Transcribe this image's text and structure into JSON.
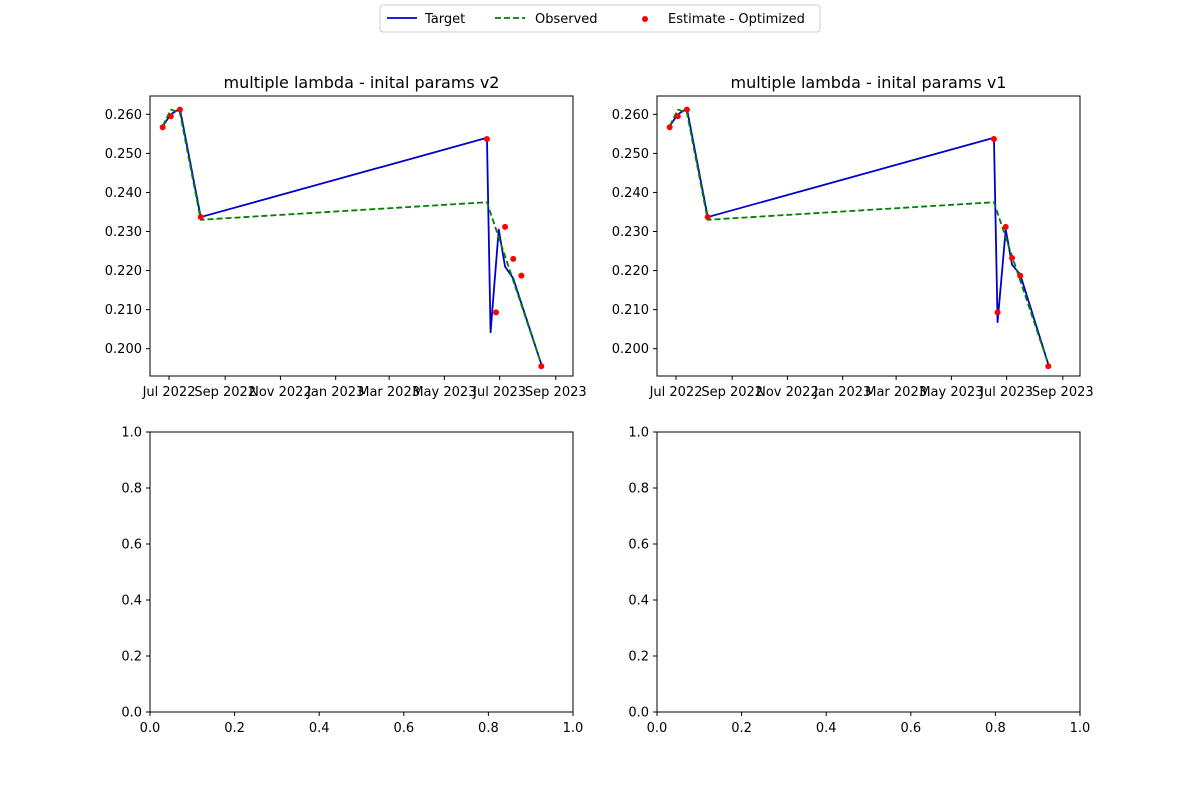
{
  "legend": {
    "entries": [
      {
        "label": "Target",
        "color": "#0000cc",
        "style": "solid"
      },
      {
        "label": "Observed",
        "color": "#008000",
        "style": "dashed"
      },
      {
        "label": "Estimate - Optimized",
        "color": "#ff0000",
        "style": "marker"
      }
    ],
    "placement": "top-center"
  },
  "chart_data": [
    {
      "type": "line",
      "title": "multiple lambda - inital params v2",
      "x_type": "date",
      "xlim": [
        "2022-06-10",
        "2023-09-20"
      ],
      "ylim": [
        0.193,
        0.2647
      ],
      "x_ticks": [
        {
          "date": "2022-07-01",
          "label": "Jul 2022"
        },
        {
          "date": "2022-09-01",
          "label": "Sep 2022"
        },
        {
          "date": "2022-11-01",
          "label": "Nov 2022"
        },
        {
          "date": "2023-01-01",
          "label": "Jan 2023"
        },
        {
          "date": "2023-03-01",
          "label": "Mar 2023"
        },
        {
          "date": "2023-05-01",
          "label": "May 2023"
        },
        {
          "date": "2023-07-01",
          "label": "Jul 2023"
        },
        {
          "date": "2023-09-01",
          "label": "Sep 2023"
        }
      ],
      "y_ticks": [
        "0.200",
        "0.210",
        "0.220",
        "0.230",
        "0.240",
        "0.250",
        "0.260"
      ],
      "y_tick_values": [
        0.2,
        0.21,
        0.22,
        0.23,
        0.24,
        0.25,
        0.26
      ],
      "grid": false,
      "series": [
        {
          "name": "Target",
          "color": "#0000cc",
          "style": "solid",
          "x": [
            "2022-06-24",
            "2022-07-03",
            "2022-07-13",
            "2022-08-05",
            "2023-06-17",
            "2023-06-21",
            "2023-06-30",
            "2023-07-07",
            "2023-07-16",
            "2023-08-16"
          ],
          "y": [
            0.257,
            0.26,
            0.2615,
            0.2337,
            0.254,
            0.2042,
            0.2305,
            0.221,
            0.218,
            0.196
          ]
        },
        {
          "name": "Observed",
          "color": "#008000",
          "style": "dashed",
          "x": [
            "2022-06-24",
            "2022-07-03",
            "2022-07-13",
            "2022-08-05",
            "2023-06-17",
            "2023-08-16"
          ],
          "y": [
            0.257,
            0.2612,
            0.2605,
            0.233,
            0.2375,
            0.196
          ]
        },
        {
          "name": "Estimate - Optimized",
          "color": "#ff0000",
          "style": "marker",
          "x": [
            "2022-06-24",
            "2022-07-03",
            "2022-07-13",
            "2022-08-05",
            "2023-06-17",
            "2023-06-27",
            "2023-07-07",
            "2023-07-16",
            "2023-07-25",
            "2023-08-16"
          ],
          "y": [
            0.2567,
            0.2595,
            0.2612,
            0.2337,
            0.2537,
            0.2093,
            0.2312,
            0.223,
            0.2187,
            0.1955
          ]
        }
      ]
    },
    {
      "type": "line",
      "title": "multiple lambda - inital params v1",
      "x_type": "date",
      "xlim": [
        "2022-06-10",
        "2023-09-20"
      ],
      "ylim": [
        0.193,
        0.2647
      ],
      "x_ticks": [
        {
          "date": "2022-07-01",
          "label": "Jul 2022"
        },
        {
          "date": "2022-09-01",
          "label": "Sep 2022"
        },
        {
          "date": "2022-11-01",
          "label": "Nov 2022"
        },
        {
          "date": "2023-01-01",
          "label": "Jan 2023"
        },
        {
          "date": "2023-03-01",
          "label": "Mar 2023"
        },
        {
          "date": "2023-05-01",
          "label": "May 2023"
        },
        {
          "date": "2023-07-01",
          "label": "Jul 2023"
        },
        {
          "date": "2023-09-01",
          "label": "Sep 2023"
        }
      ],
      "y_ticks": [
        "0.200",
        "0.210",
        "0.220",
        "0.230",
        "0.240",
        "0.250",
        "0.260"
      ],
      "y_tick_values": [
        0.2,
        0.21,
        0.22,
        0.23,
        0.24,
        0.25,
        0.26
      ],
      "grid": false,
      "series": [
        {
          "name": "Target",
          "color": "#0000cc",
          "style": "solid",
          "x": [
            "2022-06-24",
            "2022-07-03",
            "2022-07-13",
            "2022-08-05",
            "2023-06-17",
            "2023-06-21",
            "2023-06-30",
            "2023-07-07",
            "2023-07-16",
            "2023-08-16"
          ],
          "y": [
            0.257,
            0.26,
            0.2615,
            0.2337,
            0.254,
            0.2068,
            0.2305,
            0.2215,
            0.219,
            0.196
          ]
        },
        {
          "name": "Observed",
          "color": "#008000",
          "style": "dashed",
          "x": [
            "2022-06-24",
            "2022-07-03",
            "2022-07-13",
            "2022-08-05",
            "2023-06-17",
            "2023-08-16"
          ],
          "y": [
            0.257,
            0.2612,
            0.2605,
            0.233,
            0.2375,
            0.196
          ]
        },
        {
          "name": "Estimate - Optimized",
          "color": "#ff0000",
          "style": "marker",
          "x": [
            "2022-06-24",
            "2022-07-03",
            "2022-07-13",
            "2022-08-05",
            "2023-06-17",
            "2023-06-21",
            "2023-06-30",
            "2023-07-07",
            "2023-07-16",
            "2023-08-16"
          ],
          "y": [
            0.2567,
            0.2595,
            0.2612,
            0.2337,
            0.2537,
            0.2093,
            0.2312,
            0.2232,
            0.2187,
            0.1955
          ]
        }
      ]
    },
    {
      "type": "line",
      "title": "",
      "x_type": "linear",
      "xlim": [
        0,
        1
      ],
      "ylim": [
        0,
        1
      ],
      "x_ticks": [
        {
          "value": 0.0,
          "label": "0.0"
        },
        {
          "value": 0.2,
          "label": "0.2"
        },
        {
          "value": 0.4,
          "label": "0.4"
        },
        {
          "value": 0.6,
          "label": "0.6"
        },
        {
          "value": 0.8,
          "label": "0.8"
        },
        {
          "value": 1.0,
          "label": "1.0"
        }
      ],
      "y_ticks": [
        "0.0",
        "0.2",
        "0.4",
        "0.6",
        "0.8",
        "1.0"
      ],
      "y_tick_values": [
        0.0,
        0.2,
        0.4,
        0.6,
        0.8,
        1.0
      ],
      "grid": false,
      "series": []
    },
    {
      "type": "line",
      "title": "",
      "x_type": "linear",
      "xlim": [
        0,
        1
      ],
      "ylim": [
        0,
        1
      ],
      "x_ticks": [
        {
          "value": 0.0,
          "label": "0.0"
        },
        {
          "value": 0.2,
          "label": "0.2"
        },
        {
          "value": 0.4,
          "label": "0.4"
        },
        {
          "value": 0.6,
          "label": "0.6"
        },
        {
          "value": 0.8,
          "label": "0.8"
        },
        {
          "value": 1.0,
          "label": "1.0"
        }
      ],
      "y_ticks": [
        "0.0",
        "0.2",
        "0.4",
        "0.6",
        "0.8",
        "1.0"
      ],
      "y_tick_values": [
        0.0,
        0.2,
        0.4,
        0.6,
        0.8,
        1.0
      ],
      "grid": false,
      "series": []
    }
  ]
}
